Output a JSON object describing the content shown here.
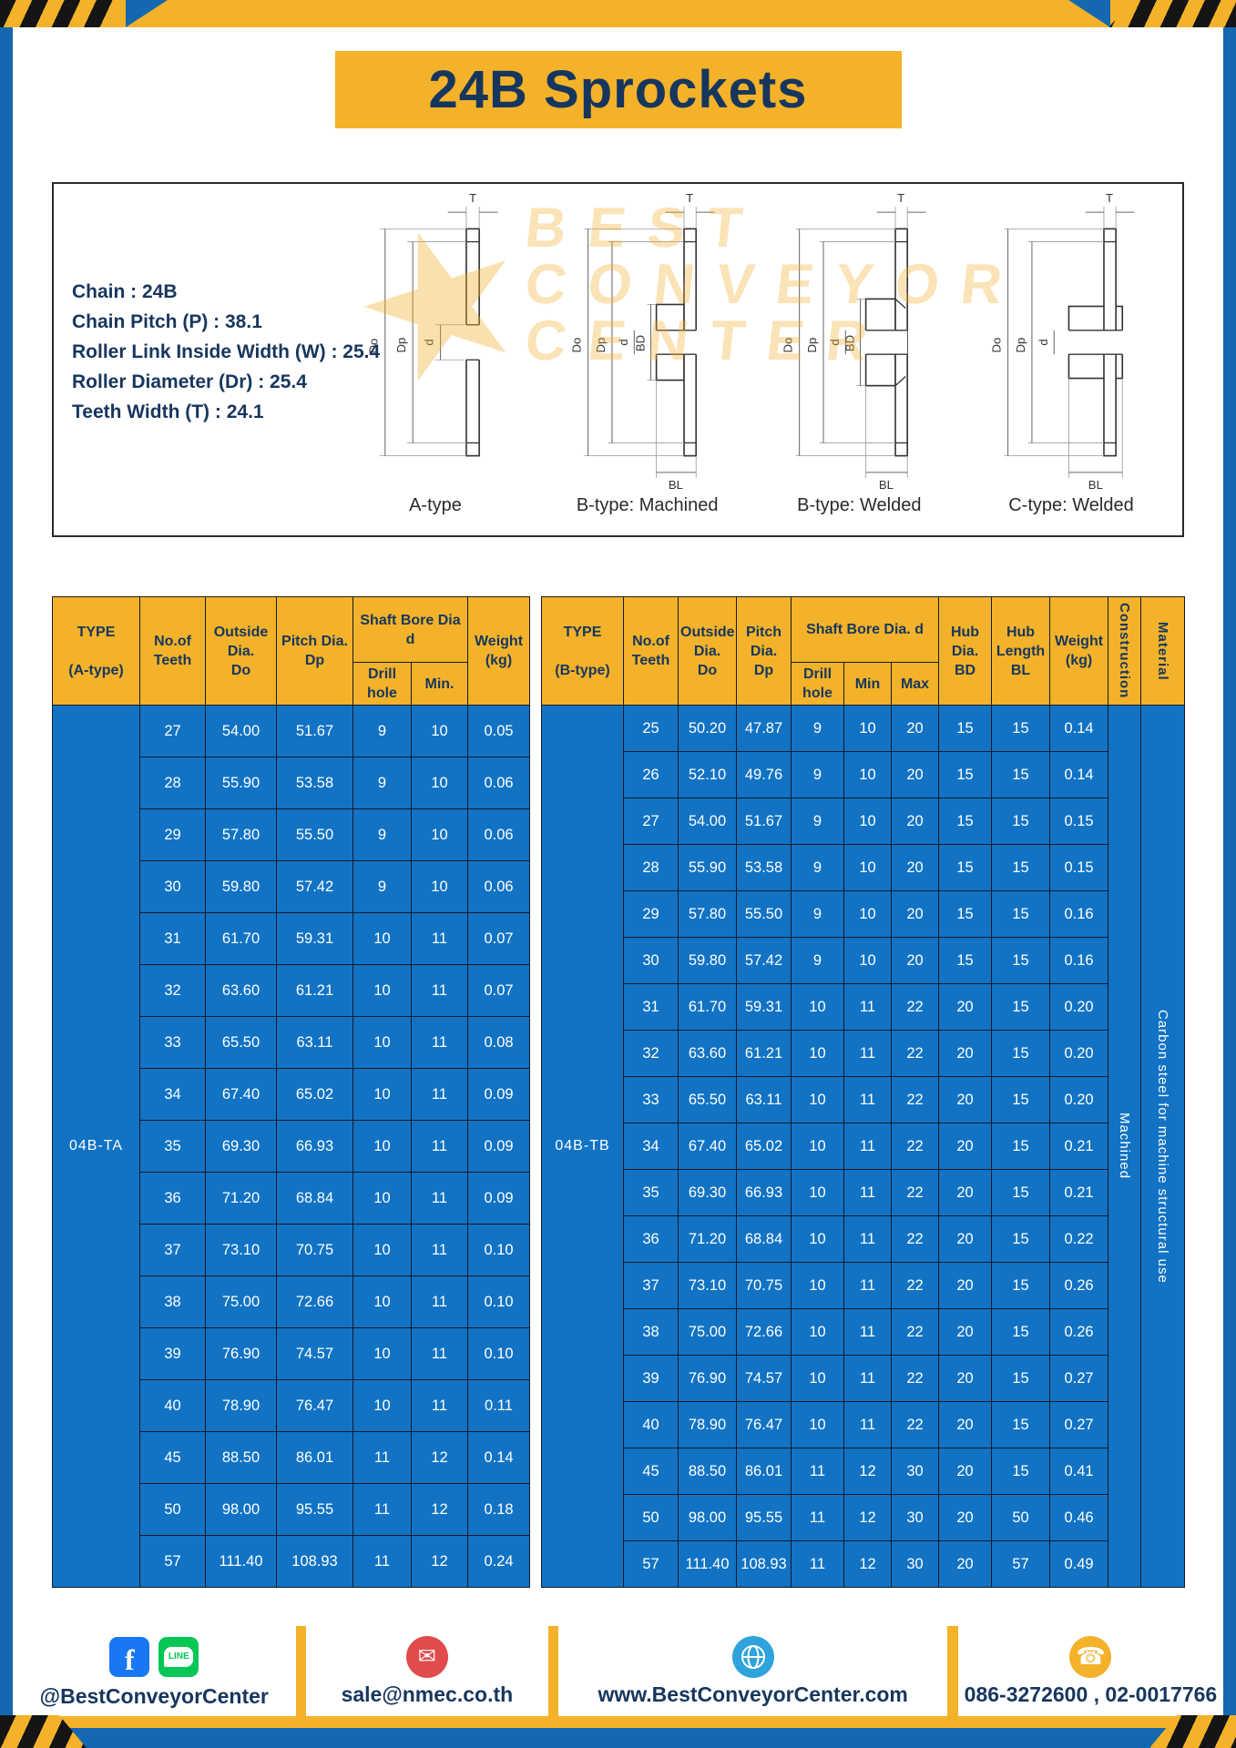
{
  "page": {
    "title": "24B Sprockets"
  },
  "specs": {
    "lines": [
      "Chain  :  24B",
      "Chain Pitch (P)  :  38.1",
      "Roller Link Inside Width (W)  :  25.4",
      "Roller Diameter (Dr)  :  25.4",
      "Teeth Width (T)  :  24.1"
    ]
  },
  "diagram": {
    "captions": [
      "A-type",
      "B-type: Machined",
      "B-type: Welded",
      "C-type: Welded"
    ],
    "labels": {
      "T": "T",
      "Do": "Do",
      "Dp": "Dp",
      "d": "d",
      "BD": "BD",
      "BL": "BL"
    }
  },
  "watermark": {
    "star": "★",
    "lines": [
      "BEST",
      "CONVEYOR",
      "CENTER"
    ]
  },
  "table_a": {
    "type_label": "04B-TA",
    "headers": {
      "type": "TYPE\n\n(A-type)",
      "teeth": "No.of\nTeeth",
      "outside": "Outside\nDia.\nDo",
      "pitch": "Pitch Dia.\nDp",
      "shaft": "Shaft Bore Dia d",
      "drill": "Drill hole",
      "min": "Min.",
      "weight": "Weight\n(kg)"
    },
    "rows": [
      [
        "27",
        "54.00",
        "51.67",
        "9",
        "10",
        "0.05"
      ],
      [
        "28",
        "55.90",
        "53.58",
        "9",
        "10",
        "0.06"
      ],
      [
        "29",
        "57.80",
        "55.50",
        "9",
        "10",
        "0.06"
      ],
      [
        "30",
        "59.80",
        "57.42",
        "9",
        "10",
        "0.06"
      ],
      [
        "31",
        "61.70",
        "59.31",
        "10",
        "11",
        "0.07"
      ],
      [
        "32",
        "63.60",
        "61.21",
        "10",
        "11",
        "0.07"
      ],
      [
        "33",
        "65.50",
        "63.11",
        "10",
        "11",
        "0.08"
      ],
      [
        "34",
        "67.40",
        "65.02",
        "10",
        "11",
        "0.09"
      ],
      [
        "35",
        "69.30",
        "66.93",
        "10",
        "11",
        "0.09"
      ],
      [
        "36",
        "71.20",
        "68.84",
        "10",
        "11",
        "0.09"
      ],
      [
        "37",
        "73.10",
        "70.75",
        "10",
        "11",
        "0.10"
      ],
      [
        "38",
        "75.00",
        "72.66",
        "10",
        "11",
        "0.10"
      ],
      [
        "39",
        "76.90",
        "74.57",
        "10",
        "11",
        "0.10"
      ],
      [
        "40",
        "78.90",
        "76.47",
        "10",
        "11",
        "0.11"
      ],
      [
        "45",
        "88.50",
        "86.01",
        "11",
        "12",
        "0.14"
      ],
      [
        "50",
        "98.00",
        "95.55",
        "11",
        "12",
        "0.18"
      ],
      [
        "57",
        "111.40",
        "108.93",
        "11",
        "12",
        "0.24"
      ]
    ]
  },
  "table_b": {
    "type_label": "04B-TB",
    "construction": "Machined",
    "material": "Carbon steel for machine structural use",
    "headers": {
      "type": "TYPE\n\n(B-type)",
      "teeth": "No.of\nTeeth",
      "outside": "Outside\nDia.\nDo",
      "pitch": "Pitch\nDia.\nDp",
      "shaft": "Shaft Bore Dia.  d",
      "drill": "Drill hole",
      "min": "Min",
      "max": "Max",
      "hub_dia": "Hub\nDia.\nBD",
      "hub_len": "Hub\nLength\nBL",
      "weight": "Weight\n(kg)",
      "construction": "Construction",
      "material": "Material"
    },
    "rows": [
      [
        "25",
        "50.20",
        "47.87",
        "9",
        "10",
        "20",
        "15",
        "15",
        "0.14"
      ],
      [
        "26",
        "52.10",
        "49.76",
        "9",
        "10",
        "20",
        "15",
        "15",
        "0.14"
      ],
      [
        "27",
        "54.00",
        "51.67",
        "9",
        "10",
        "20",
        "15",
        "15",
        "0.15"
      ],
      [
        "28",
        "55.90",
        "53.58",
        "9",
        "10",
        "20",
        "15",
        "15",
        "0.15"
      ],
      [
        "29",
        "57.80",
        "55.50",
        "9",
        "10",
        "20",
        "15",
        "15",
        "0.16"
      ],
      [
        "30",
        "59.80",
        "57.42",
        "9",
        "10",
        "20",
        "15",
        "15",
        "0.16"
      ],
      [
        "31",
        "61.70",
        "59.31",
        "10",
        "11",
        "22",
        "20",
        "15",
        "0.20"
      ],
      [
        "32",
        "63.60",
        "61.21",
        "10",
        "11",
        "22",
        "20",
        "15",
        "0.20"
      ],
      [
        "33",
        "65.50",
        "63.11",
        "10",
        "11",
        "22",
        "20",
        "15",
        "0.20"
      ],
      [
        "34",
        "67.40",
        "65.02",
        "10",
        "11",
        "22",
        "20",
        "15",
        "0.21"
      ],
      [
        "35",
        "69.30",
        "66.93",
        "10",
        "11",
        "22",
        "20",
        "15",
        "0.21"
      ],
      [
        "36",
        "71.20",
        "68.84",
        "10",
        "11",
        "22",
        "20",
        "15",
        "0.22"
      ],
      [
        "37",
        "73.10",
        "70.75",
        "10",
        "11",
        "22",
        "20",
        "15",
        "0.26"
      ],
      [
        "38",
        "75.00",
        "72.66",
        "10",
        "11",
        "22",
        "20",
        "15",
        "0.26"
      ],
      [
        "39",
        "76.90",
        "74.57",
        "10",
        "11",
        "22",
        "20",
        "15",
        "0.27"
      ],
      [
        "40",
        "78.90",
        "76.47",
        "10",
        "11",
        "22",
        "20",
        "15",
        "0.27"
      ],
      [
        "45",
        "88.50",
        "86.01",
        "11",
        "12",
        "30",
        "20",
        "15",
        "0.41"
      ],
      [
        "50",
        "98.00",
        "95.55",
        "11",
        "12",
        "30",
        "20",
        "50",
        "0.46"
      ],
      [
        "57",
        "111.40",
        "108.93",
        "11",
        "12",
        "30",
        "20",
        "57",
        "0.49"
      ]
    ]
  },
  "footer": {
    "facebook_glyph": "f",
    "line_label": "LINE",
    "social_label": "@BestConveyorCenter",
    "email": "sale@nmec.co.th",
    "website": "www.BestConveyorCenter.com",
    "phone": "086-3272600 , 02-0017766",
    "mail_glyph": "✉",
    "phone_glyph": "☎"
  },
  "colors": {
    "accent_yellow": "#F3B229",
    "navy_text": "#17365D",
    "frame_blue": "#1568B0",
    "table_blue": "#1273C4",
    "facebook_blue": "#1877F2",
    "line_green": "#06C755",
    "email_red": "#E14B4B",
    "globe_blue": "#2FA3DB"
  }
}
